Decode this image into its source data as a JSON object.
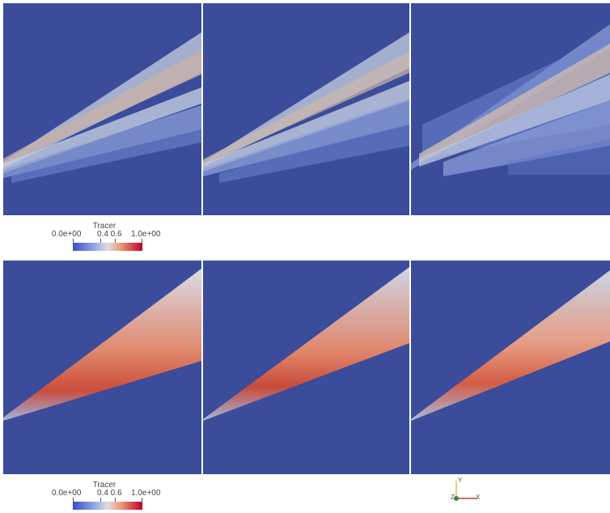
{
  "colorbar": {
    "title": "Tracer",
    "min_label": "0.0e+00",
    "mid_labels": "0.4 0.6",
    "max_label": "1.0e+00",
    "colors": [
      "#3b4cc0",
      "#dddddd",
      "#b40426"
    ]
  },
  "axes_triad": {
    "y": "Y",
    "z": "Z",
    "x": "X"
  },
  "colors": {
    "background_field": "#3b4c9b",
    "separator": "#b5b9d1"
  }
}
